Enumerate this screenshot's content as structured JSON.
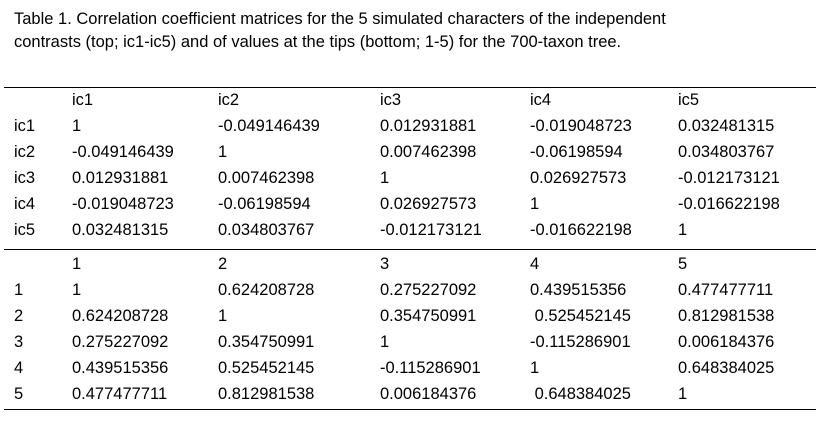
{
  "caption": "Table 1.  Correlation coefficient matrices for the 5 simulated characters of the independent contrasts (top; ic1-ic5) and of values at the tips (bottom; 1-5) for the 700-taxon tree.",
  "top_matrix": {
    "headers": [
      "",
      "ic1",
      "ic2",
      "ic3",
      "ic4",
      "ic5"
    ],
    "rows": [
      [
        "ic1",
        "1",
        "-0.049146439",
        "0.012931881",
        "-0.019048723",
        "0.032481315"
      ],
      [
        "ic2",
        "-0.049146439",
        "1",
        "0.007462398",
        "-0.06198594",
        "0.034803767"
      ],
      [
        "ic3",
        "0.012931881",
        "0.007462398",
        "1",
        "0.026927573",
        "-0.012173121"
      ],
      [
        "ic4",
        "-0.019048723",
        "-0.06198594",
        "0.026927573",
        "1",
        "-0.016622198"
      ],
      [
        "ic5",
        "0.032481315",
        "0.034803767",
        "-0.012173121",
        "-0.016622198",
        "1"
      ]
    ]
  },
  "bottom_matrix": {
    "headers": [
      "",
      "1",
      "2",
      "3",
      "4",
      "5"
    ],
    "rows": [
      [
        "1",
        "1",
        "0.624208728",
        "0.275227092",
        "0.439515356",
        "0.477477711"
      ],
      [
        "2",
        "0.624208728",
        "1",
        "0.354750991",
        " 0.525452145",
        "0.812981538"
      ],
      [
        "3",
        "0.275227092",
        "0.354750991",
        "1",
        "-0.115286901",
        "0.006184376"
      ],
      [
        "4",
        "0.439515356",
        "0.525452145",
        "-0.115286901",
        "1",
        "0.648384025"
      ],
      [
        "5",
        "0.477477711",
        "0.812981538",
        "0.006184376",
        " 0.648384025",
        "1"
      ]
    ]
  }
}
